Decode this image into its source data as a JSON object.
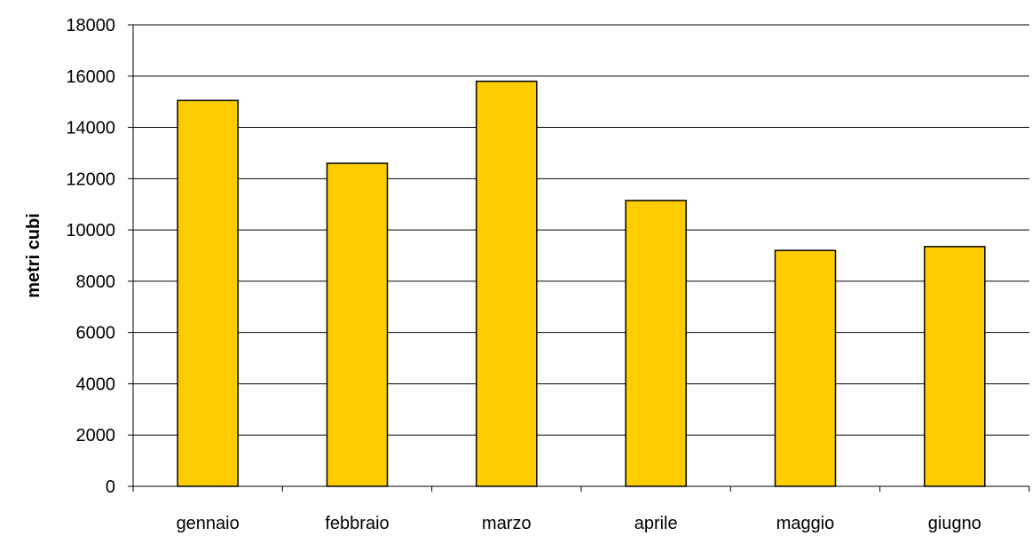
{
  "chart_data": {
    "type": "bar",
    "title": "",
    "xlabel": "",
    "ylabel": "metri cubi",
    "categories": [
      "gennaio",
      "febbraio",
      "marzo",
      "aprile",
      "maggio",
      "giugno"
    ],
    "values": [
      15050,
      12600,
      15800,
      11150,
      9200,
      9350
    ],
    "ylim": [
      0,
      18000
    ],
    "yticks": [
      0,
      2000,
      4000,
      6000,
      8000,
      10000,
      12000,
      14000,
      16000,
      18000
    ],
    "grid": true,
    "legend": "none",
    "colors": {
      "bar_fill": "#FFCC00",
      "bar_stroke": "#000000",
      "grid": "#000000",
      "axis": "#000000"
    }
  }
}
